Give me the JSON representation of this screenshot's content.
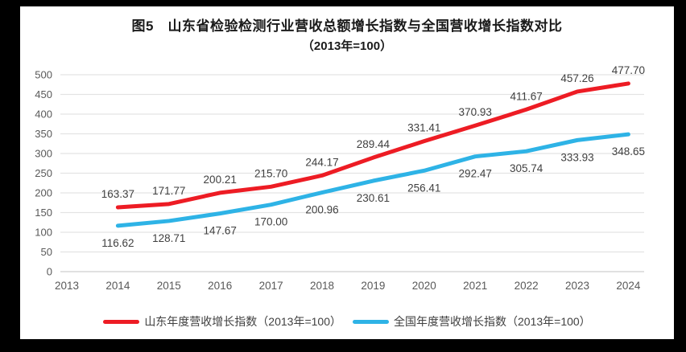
{
  "frame_color": "#000000",
  "panel_color": "#ffffff",
  "chart_data": {
    "type": "line",
    "title": "图5　山东省检验检测行业营收总额增长指数与全国营收增长指数对比",
    "subtitle": "（2013年=100）",
    "categories": [
      "2013",
      "2014",
      "2015",
      "2016",
      "2017",
      "2018",
      "2019",
      "2020",
      "2021",
      "2022",
      "2023",
      "2024"
    ],
    "series": [
      {
        "name": "山东年度营收增长指数（2013年=100）",
        "color": "#ED1C24",
        "label_position": "above",
        "values": [
          null,
          163.37,
          171.77,
          200.21,
          215.7,
          244.17,
          289.44,
          331.41,
          370.93,
          411.67,
          457.26,
          477.7
        ]
      },
      {
        "name": "全国年度营收增长指数（2013年=100）",
        "color": "#2EB3E6",
        "label_position": "below",
        "values": [
          null,
          116.62,
          128.71,
          147.67,
          170.0,
          200.96,
          230.61,
          256.41,
          292.47,
          305.74,
          333.93,
          348.65
        ]
      }
    ],
    "ylim": [
      0,
      500
    ],
    "y_ticks": [
      0,
      50,
      100,
      150,
      200,
      250,
      300,
      350,
      400,
      450,
      500
    ],
    "grid": "horizontal",
    "gridline_color": "#E3E3E3",
    "axis_label_color": "#595959",
    "data_label_color": "#404040",
    "legend_position": "bottom"
  }
}
